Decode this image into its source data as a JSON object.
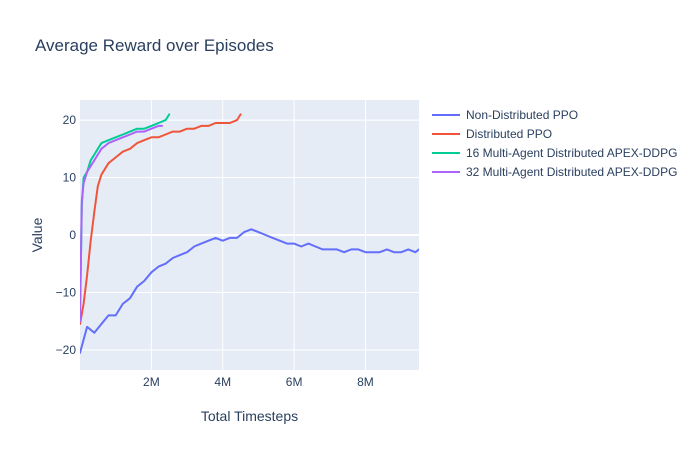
{
  "chart_data": {
    "type": "line",
    "title": "Average Reward over Episodes",
    "xlabel": "Total Timesteps",
    "ylabel": "Value",
    "xlim": [
      0,
      9500000
    ],
    "ylim": [
      -23.5,
      23.5
    ],
    "grid": true,
    "legend_position": "right",
    "x_ticks": [
      {
        "value": 2000000,
        "label": "2M"
      },
      {
        "value": 4000000,
        "label": "4M"
      },
      {
        "value": 6000000,
        "label": "6M"
      },
      {
        "value": 8000000,
        "label": "8M"
      }
    ],
    "y_ticks": [
      {
        "value": -20,
        "label": "−20"
      },
      {
        "value": -10,
        "label": "−10"
      },
      {
        "value": 0,
        "label": "0"
      },
      {
        "value": 10,
        "label": "10"
      },
      {
        "value": 20,
        "label": "20"
      }
    ],
    "series": [
      {
        "name": "Non-Distributed PPO",
        "color": "#636efa",
        "x": [
          0,
          200000,
          400000,
          600000,
          800000,
          1000000,
          1200000,
          1400000,
          1600000,
          1800000,
          2000000,
          2200000,
          2400000,
          2600000,
          2800000,
          3000000,
          3200000,
          3400000,
          3600000,
          3800000,
          4000000,
          4200000,
          4400000,
          4600000,
          4800000,
          5000000,
          5200000,
          5400000,
          5600000,
          5800000,
          6000000,
          6200000,
          6400000,
          6600000,
          6800000,
          7000000,
          7200000,
          7400000,
          7600000,
          7800000,
          8000000,
          8200000,
          8400000,
          8600000,
          8800000,
          9000000,
          9200000,
          9400000,
          9500000
        ],
        "values": [
          -20.5,
          -16,
          -17,
          -15.5,
          -14,
          -14,
          -12,
          -11,
          -9,
          -8,
          -6.5,
          -5.5,
          -5,
          -4,
          -3.5,
          -3,
          -2,
          -1.5,
          -1,
          -0.5,
          -1,
          -0.5,
          -0.5,
          0.5,
          1,
          0.5,
          0,
          -0.5,
          -1,
          -1.5,
          -1.5,
          -2,
          -1.5,
          -2,
          -2.5,
          -2.5,
          -2.5,
          -3,
          -2.5,
          -2.5,
          -3,
          -3,
          -3,
          -2.5,
          -3,
          -3,
          -2.5,
          -3,
          -2.5
        ]
      },
      {
        "name": "Distributed PPO",
        "color": "#ef553b",
        "x": [
          0,
          100000,
          200000,
          300000,
          400000,
          500000,
          600000,
          800000,
          1000000,
          1200000,
          1400000,
          1600000,
          1800000,
          2000000,
          2200000,
          2400000,
          2600000,
          2800000,
          3000000,
          3200000,
          3400000,
          3600000,
          3800000,
          4000000,
          4200000,
          4400000,
          4500000
        ],
        "values": [
          -15.5,
          -12,
          -7,
          -1,
          4,
          8.5,
          10.5,
          12.5,
          13.5,
          14.5,
          15,
          16,
          16.5,
          17,
          17,
          17.5,
          18,
          18,
          18.5,
          18.5,
          19,
          19,
          19.5,
          19.5,
          19.5,
          20,
          21
        ]
      },
      {
        "name": "16 Multi-Agent Distributed APEX-DDPG",
        "color": "#00cc96",
        "x": [
          0,
          50000,
          100000,
          200000,
          300000,
          400000,
          500000,
          600000,
          800000,
          1000000,
          1200000,
          1400000,
          1600000,
          1800000,
          2000000,
          2200000,
          2400000,
          2500000
        ],
        "values": [
          -14,
          5,
          10,
          11,
          13,
          14,
          15,
          16,
          16.5,
          17,
          17.5,
          18,
          18.5,
          18.5,
          19,
          19.5,
          20,
          21
        ]
      },
      {
        "name": "32 Multi-Agent Distributed APEX-DDPG",
        "color": "#ab63fa",
        "x": [
          0,
          50000,
          100000,
          200000,
          300000,
          400000,
          500000,
          600000,
          800000,
          1000000,
          1200000,
          1400000,
          1600000,
          1800000,
          2000000,
          2200000,
          2300000
        ],
        "values": [
          -15,
          6,
          9,
          11,
          12,
          13,
          14,
          15,
          16,
          16.5,
          17,
          17.5,
          18,
          18,
          18.5,
          19,
          19
        ]
      }
    ]
  }
}
